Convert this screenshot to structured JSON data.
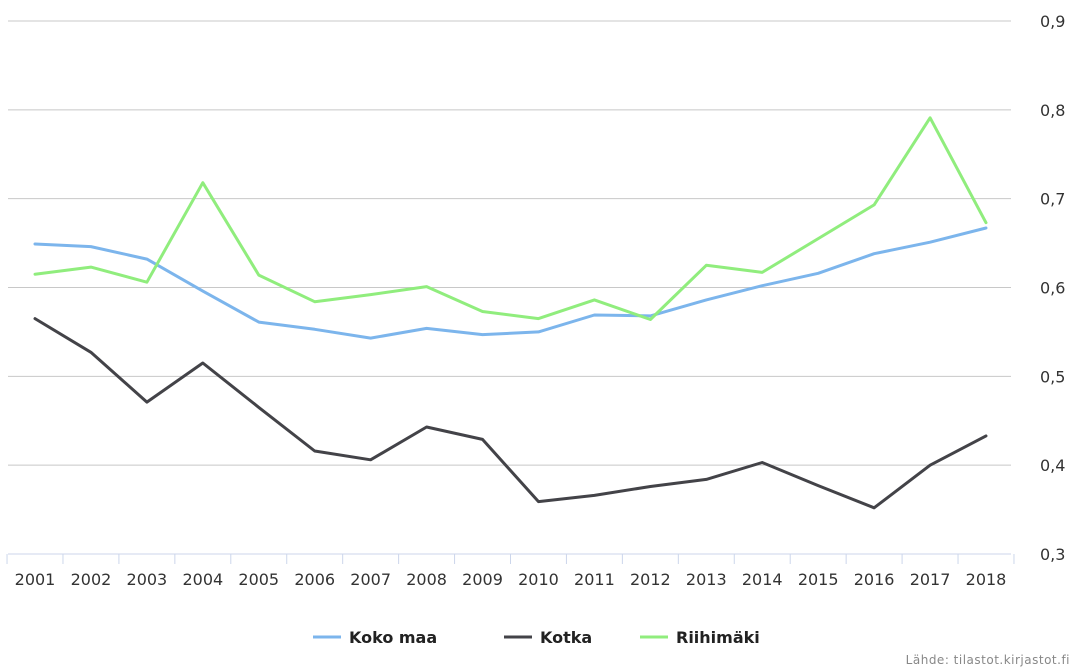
{
  "chart_data": {
    "type": "line",
    "x": [
      "2001",
      "2002",
      "2003",
      "2004",
      "2005",
      "2006",
      "2007",
      "2008",
      "2009",
      "2010",
      "2011",
      "2012",
      "2013",
      "2014",
      "2015",
      "2016",
      "2017",
      "2018"
    ],
    "ylim": [
      0.3,
      0.9
    ],
    "yticks": [
      "0,3",
      "0,4",
      "0,5",
      "0,6",
      "0,7",
      "0,8",
      "0,9"
    ],
    "grid": true,
    "legend_position": "bottom-center",
    "series": [
      {
        "name": "Koko maa",
        "color": "#7cb5ec",
        "values": [
          0.649,
          0.646,
          0.632,
          0.596,
          0.561,
          0.553,
          0.543,
          0.554,
          0.547,
          0.55,
          0.569,
          0.568,
          0.586,
          0.602,
          0.616,
          0.638,
          0.651,
          0.667
        ]
      },
      {
        "name": "Kotka",
        "color": "#434348",
        "values": [
          0.565,
          0.527,
          0.471,
          0.515,
          0.465,
          0.416,
          0.406,
          0.443,
          0.429,
          0.359,
          0.366,
          0.376,
          0.384,
          0.403,
          0.377,
          0.352,
          0.4,
          0.433
        ]
      },
      {
        "name": "Riihimäki",
        "color": "#90ed7d",
        "values": [
          0.615,
          0.623,
          0.606,
          0.718,
          0.614,
          0.584,
          0.592,
          0.601,
          0.573,
          0.565,
          0.586,
          0.564,
          0.625,
          0.617,
          0.655,
          0.693,
          0.791,
          0.673
        ]
      }
    ]
  },
  "source": "Lähde: tilastot.kirjastot.fi"
}
